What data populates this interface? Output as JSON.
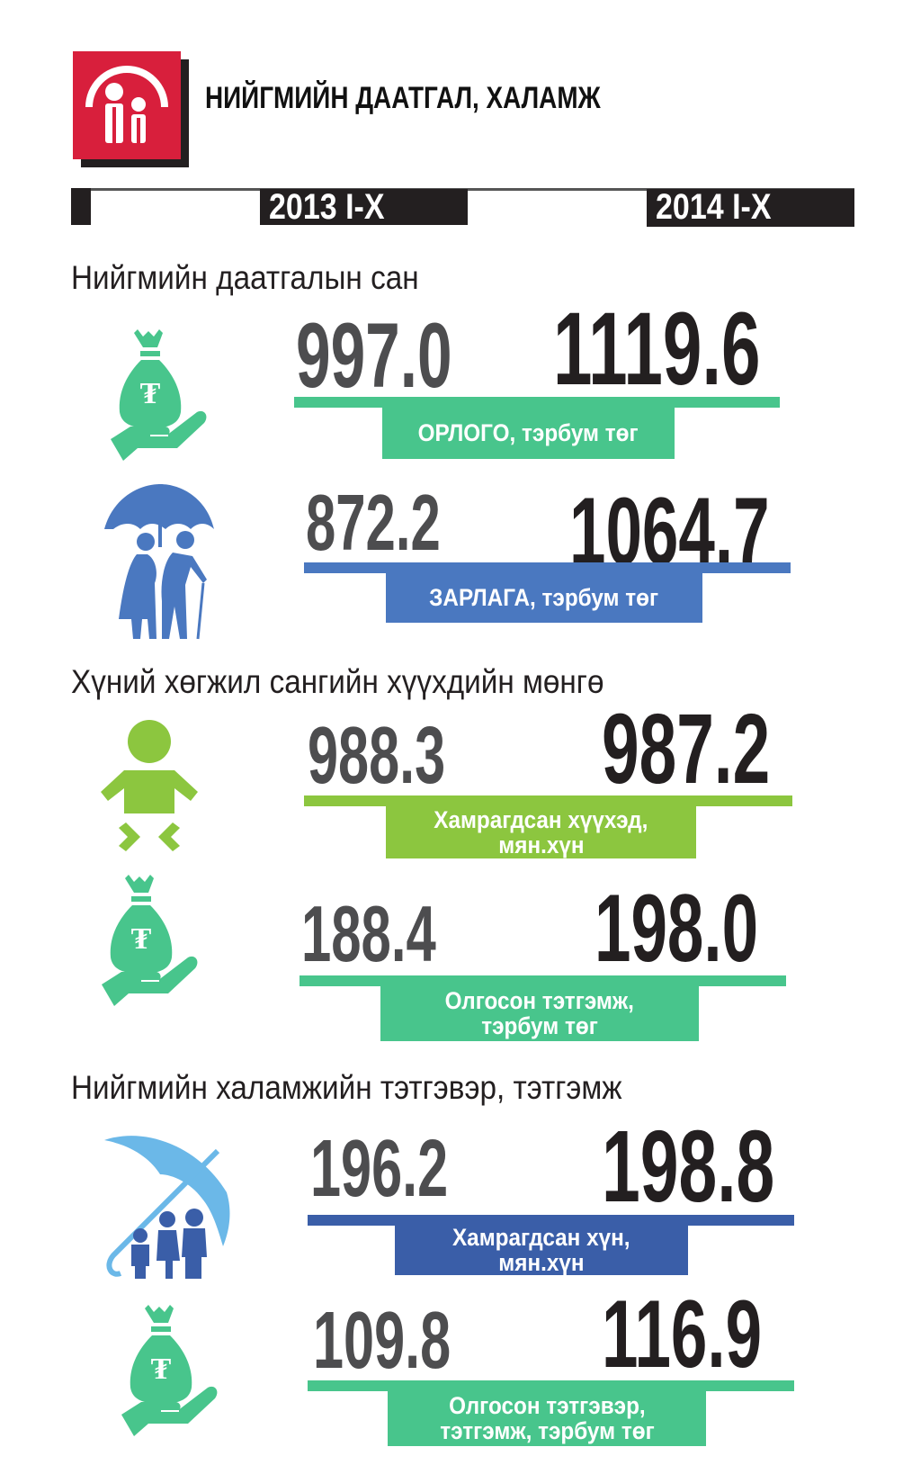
{
  "header": {
    "title": "НИЙГМИЙН ДААТГАЛ, ХАЛАМЖ",
    "logo_icon": "family-under-arch-icon"
  },
  "years": {
    "left": "2013 I-X",
    "right": "2014 I-X"
  },
  "colors": {
    "red": "#d81f3c",
    "green": "#48c58c",
    "lime": "#8cc63f",
    "blue": "#4a78c0",
    "dark_blue": "#3a5ea8",
    "dark": "#231f20",
    "gray": "#4d4d4f"
  },
  "sections": [
    {
      "heading": "Нийгмийн даатгалын сан",
      "rows": [
        {
          "icon": "money-bag-hand-icon",
          "v2013": "997.0",
          "v2014": "1119.6",
          "label": [
            "ОРЛОГО, тэрбум төг"
          ]
        },
        {
          "icon": "elderly-couple-umbrella-icon",
          "v2013": "872.2",
          "v2014": "1064.7",
          "label": [
            "ЗАРЛАГА, тэрбум төг"
          ]
        }
      ]
    },
    {
      "heading": "Хүний хөгжил сангийн хүүхдийн мөнгө",
      "rows": [
        {
          "icon": "baby-icon",
          "v2013": "988.3",
          "v2014": "987.2",
          "label": [
            "Хамрагдсан хүүхэд,",
            "мян.хүн"
          ]
        },
        {
          "icon": "money-bag-hand-icon",
          "v2013": "188.4",
          "v2014": "198.0",
          "label": [
            "Олгосон тэтгэмж,",
            "тэрбум төг"
          ]
        }
      ]
    },
    {
      "heading": "Нийгмийн халамжийн тэтгэвэр, тэтгэмж",
      "rows": [
        {
          "icon": "family-umbrella-icon",
          "v2013": "196.2",
          "v2014": "198.8",
          "label": [
            "Хамрагдсан хүн,",
            "мян.хүн"
          ]
        },
        {
          "icon": "money-bag-hand-icon",
          "v2013": "109.8",
          "v2014": "116.9",
          "label": [
            "Олгосон тэтгэвэр,",
            "тэтгэмж, тэрбум төг"
          ]
        }
      ]
    }
  ]
}
